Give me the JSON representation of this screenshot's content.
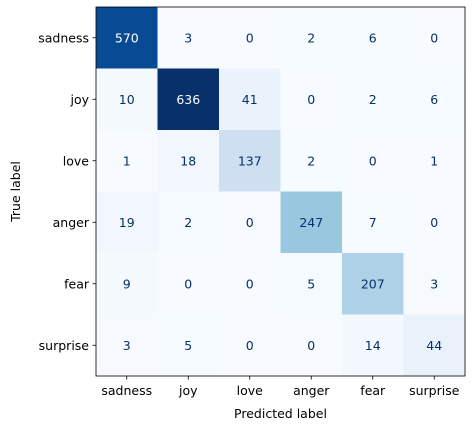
{
  "chart_data": {
    "type": "heatmap",
    "title": "",
    "xlabel": "Predicted label",
    "ylabel": "True label",
    "x_categories": [
      "sadness",
      "joy",
      "love",
      "anger",
      "fear",
      "surprise"
    ],
    "y_categories": [
      "sadness",
      "joy",
      "love",
      "anger",
      "fear",
      "surprise"
    ],
    "values": [
      [
        570,
        3,
        0,
        2,
        6,
        0
      ],
      [
        10,
        636,
        41,
        0,
        2,
        6
      ],
      [
        1,
        18,
        137,
        2,
        0,
        1
      ],
      [
        19,
        2,
        0,
        247,
        7,
        0
      ],
      [
        9,
        0,
        0,
        5,
        207,
        3
      ],
      [
        3,
        5,
        0,
        0,
        14,
        44
      ]
    ],
    "value_range": [
      0,
      636
    ],
    "colormap": "Blues",
    "colormap_low": "#f7fbff",
    "colormap_high": "#08306b",
    "light_text_color": "#ffffff",
    "dark_text_color": "#08306b",
    "grid": false,
    "legend": "none"
  }
}
